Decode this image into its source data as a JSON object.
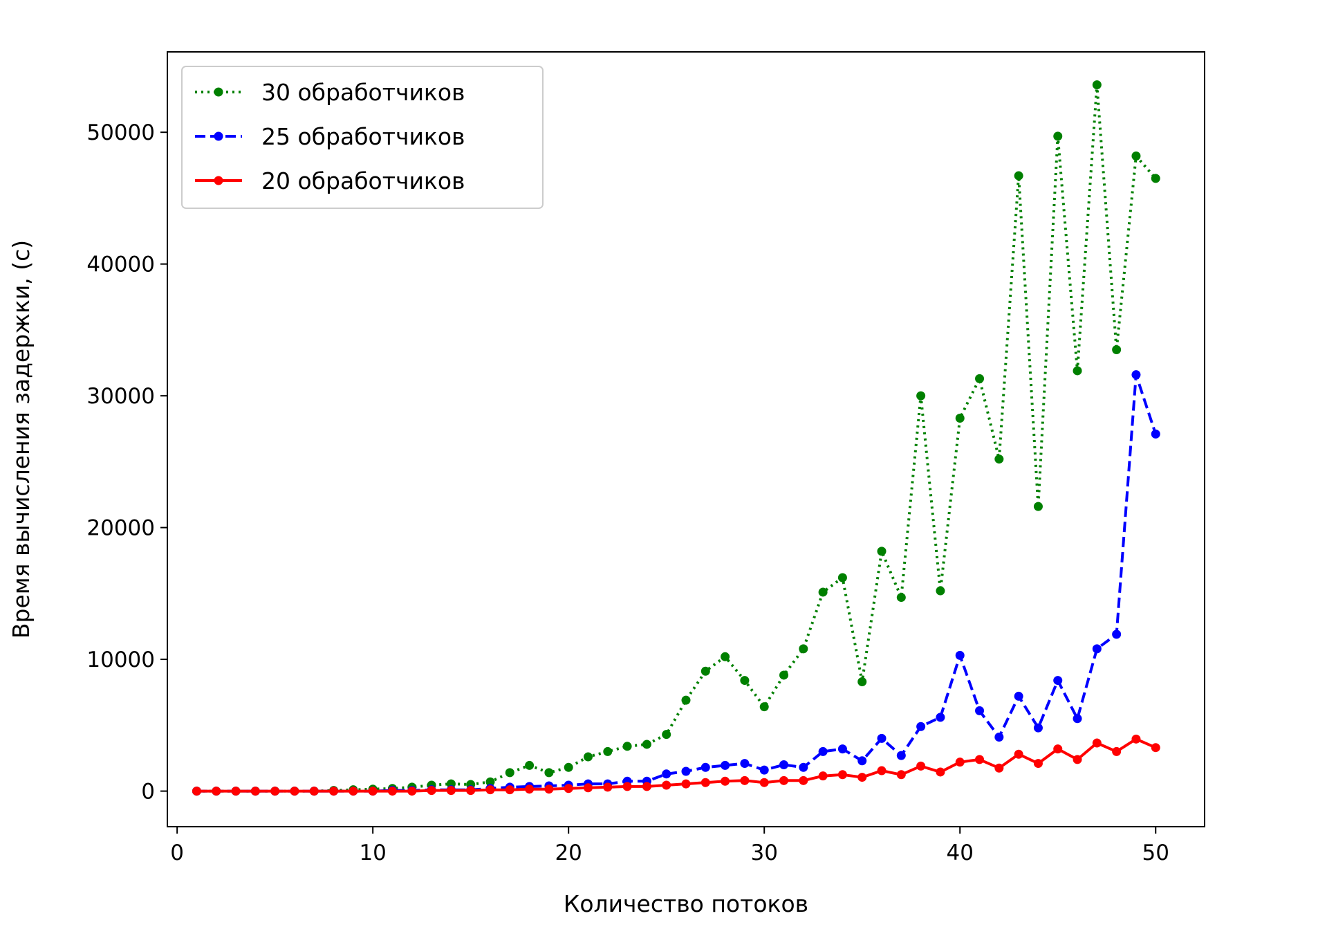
{
  "chart_data": {
    "type": "line",
    "xlabel": "Количество потоков",
    "ylabel": "Время вычисления задержки, (с)",
    "xlim": [
      -0.5,
      52.5
    ],
    "ylim": [
      -2700,
      56100
    ],
    "xticks": [
      0,
      10,
      20,
      30,
      40,
      50
    ],
    "yticks": [
      0,
      10000,
      20000,
      30000,
      40000,
      50000
    ],
    "grid": false,
    "legend_position": "upper-left",
    "x": [
      1,
      2,
      3,
      4,
      5,
      6,
      7,
      8,
      9,
      10,
      11,
      12,
      13,
      14,
      15,
      16,
      17,
      18,
      19,
      20,
      21,
      22,
      23,
      24,
      25,
      26,
      27,
      28,
      29,
      30,
      31,
      32,
      33,
      34,
      35,
      36,
      37,
      38,
      39,
      40,
      41,
      42,
      43,
      44,
      45,
      46,
      47,
      48,
      49,
      50
    ],
    "series": [
      {
        "name": "30 обработчиков",
        "color": "#008000",
        "linestyle": "dotted",
        "values": [
          0,
          0,
          0,
          0,
          0,
          0,
          0,
          50,
          100,
          150,
          200,
          300,
          450,
          550,
          500,
          700,
          1400,
          1950,
          1400,
          1800,
          2600,
          3000,
          3400,
          3550,
          4300,
          6900,
          9100,
          10200,
          8400,
          6400,
          8800,
          10800,
          15100,
          16200,
          8300,
          18200,
          14700,
          30000,
          15200,
          28300,
          31300,
          25200,
          46700,
          21600,
          49700,
          31900,
          53600,
          33500,
          48200,
          46500
        ]
      },
      {
        "name": "25 обработчиков",
        "color": "#0000ff",
        "linestyle": "dashed",
        "values": [
          0,
          0,
          0,
          0,
          0,
          0,
          0,
          0,
          0,
          0,
          50,
          50,
          100,
          100,
          100,
          200,
          300,
          350,
          400,
          450,
          550,
          550,
          750,
          750,
          1300,
          1500,
          1800,
          1950,
          2100,
          1600,
          2000,
          1800,
          3000,
          3200,
          2300,
          4000,
          2700,
          4900,
          5600,
          10300,
          6100,
          4100,
          7200,
          4800,
          8400,
          5500,
          10800,
          11900,
          31600,
          27100
        ]
      },
      {
        "name": "20 обработчиков",
        "color": "#ff0000",
        "linestyle": "solid",
        "values": [
          0,
          0,
          0,
          0,
          0,
          0,
          0,
          0,
          0,
          0,
          0,
          0,
          50,
          50,
          50,
          100,
          100,
          150,
          150,
          200,
          250,
          300,
          350,
          350,
          450,
          550,
          650,
          750,
          800,
          650,
          800,
          800,
          1150,
          1250,
          1050,
          1550,
          1250,
          1900,
          1450,
          2200,
          2400,
          1750,
          2800,
          2100,
          3200,
          2400,
          3650,
          3000,
          3950,
          3300
        ]
      }
    ]
  }
}
